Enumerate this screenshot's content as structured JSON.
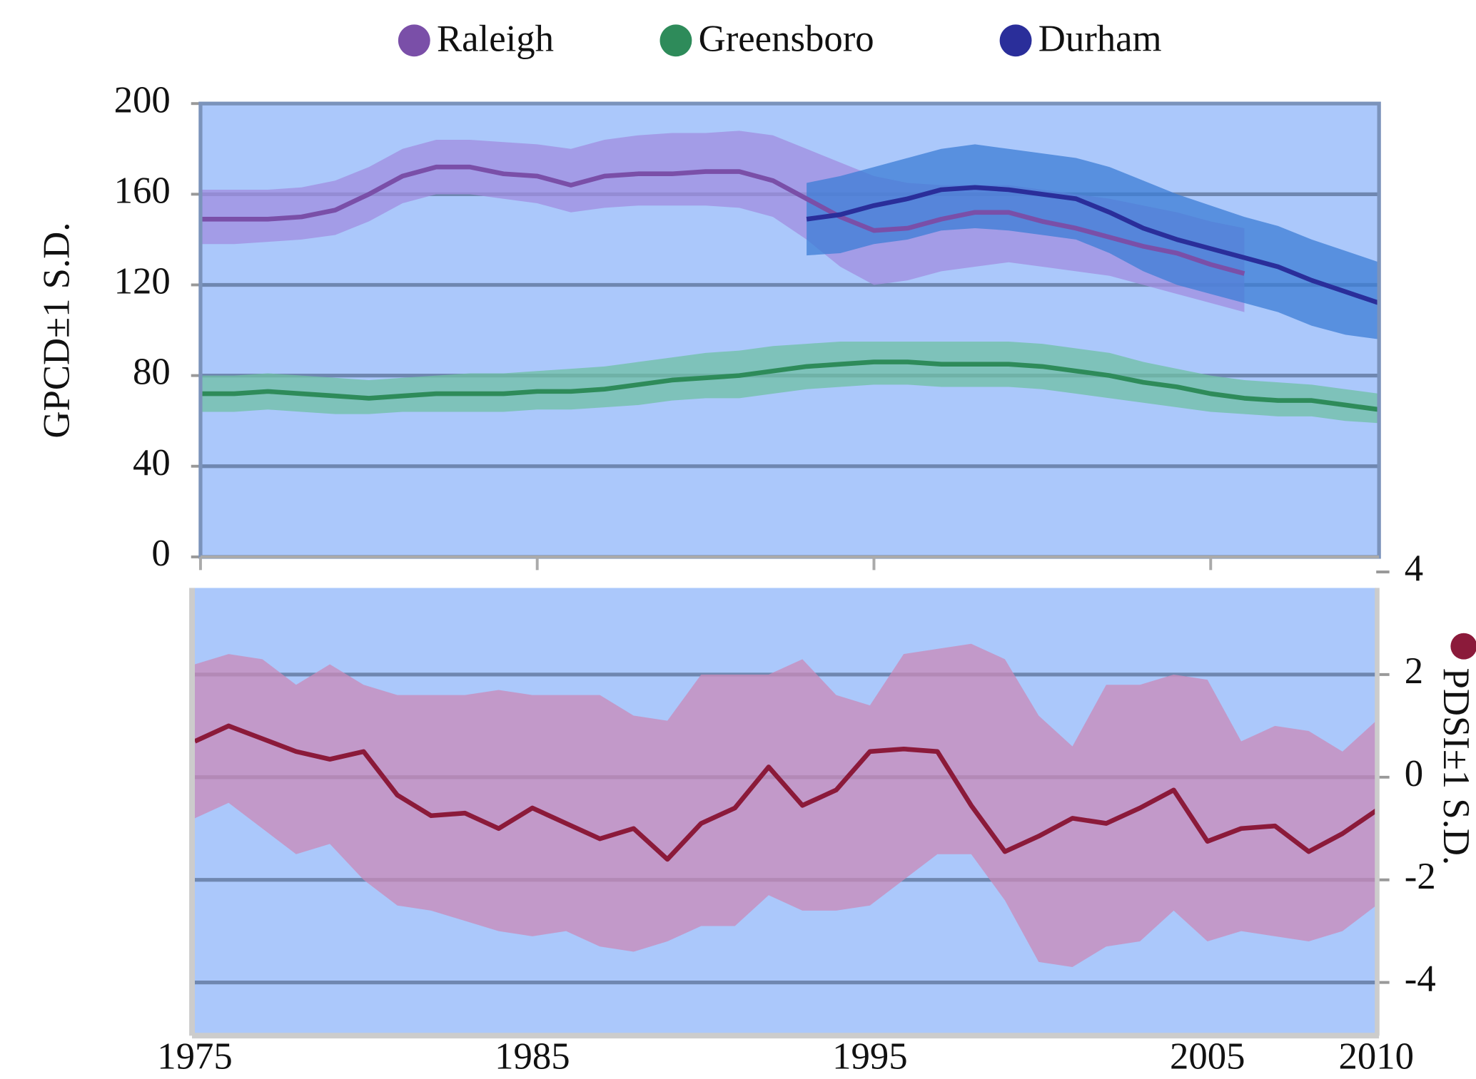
{
  "chart_data": [
    {
      "type": "line",
      "ylabel": "GPCD±1 S.D.",
      "x": [
        1975,
        1976,
        1977,
        1978,
        1979,
        1980,
        1981,
        1982,
        1983,
        1984,
        1985,
        1986,
        1987,
        1988,
        1989,
        1990,
        1991,
        1992,
        1993,
        1994,
        1995,
        1996,
        1997,
        1998,
        1999,
        2000,
        2001,
        2002,
        2003,
        2004,
        2005,
        2006,
        2007,
        2008,
        2009,
        2010
      ],
      "xlim": [
        1975,
        2010
      ],
      "xticks": [
        1975,
        1985,
        1995,
        2005
      ],
      "ylim": [
        0,
        200
      ],
      "yticks": [
        0,
        40,
        80,
        120,
        160,
        200
      ],
      "grid": true,
      "series": [
        {
          "name": "Raleigh",
          "color": "#7a4fa8",
          "band_color": "#a08ee0",
          "values": [
            149,
            149,
            149,
            150,
            153,
            160,
            168,
            172,
            172,
            169,
            168,
            164,
            168,
            169,
            169,
            170,
            170,
            166,
            158,
            150,
            144,
            145,
            149,
            152,
            152,
            148,
            145,
            141,
            137,
            134,
            129,
            125,
            null,
            null,
            null,
            null
          ],
          "upper": [
            162,
            162,
            162,
            163,
            166,
            172,
            180,
            184,
            184,
            183,
            182,
            180,
            184,
            186,
            187,
            187,
            188,
            186,
            180,
            174,
            168,
            165,
            164,
            164,
            164,
            162,
            160,
            158,
            155,
            152,
            148,
            145,
            null,
            null,
            null,
            null
          ],
          "lower": [
            138,
            138,
            139,
            140,
            142,
            148,
            156,
            160,
            160,
            158,
            156,
            152,
            154,
            155,
            155,
            155,
            154,
            150,
            140,
            128,
            120,
            122,
            126,
            128,
            130,
            128,
            126,
            124,
            120,
            116,
            112,
            108,
            null,
            null,
            null,
            null
          ]
        },
        {
          "name": "Greensboro",
          "color": "#2e8b5a",
          "band_color": "#6fc0a4",
          "values": [
            72,
            72,
            73,
            72,
            71,
            70,
            71,
            72,
            72,
            72,
            73,
            73,
            74,
            76,
            78,
            79,
            80,
            82,
            84,
            85,
            86,
            86,
            85,
            85,
            85,
            84,
            82,
            80,
            77,
            75,
            72,
            70,
            69,
            69,
            67,
            65
          ],
          "upper": [
            80,
            80,
            81,
            80,
            79,
            78,
            79,
            80,
            81,
            81,
            82,
            83,
            84,
            86,
            88,
            90,
            91,
            93,
            94,
            95,
            95,
            95,
            95,
            95,
            95,
            94,
            92,
            90,
            86,
            83,
            80,
            78,
            77,
            76,
            74,
            72
          ],
          "lower": [
            64,
            64,
            65,
            64,
            63,
            63,
            64,
            64,
            64,
            64,
            65,
            65,
            66,
            67,
            69,
            70,
            70,
            72,
            74,
            75,
            76,
            76,
            75,
            75,
            75,
            74,
            72,
            70,
            68,
            66,
            64,
            63,
            62,
            62,
            60,
            59
          ]
        },
        {
          "name": "Durham",
          "color": "#2a2e9a",
          "band_color": "#3c7ed6",
          "values": [
            null,
            null,
            null,
            null,
            null,
            null,
            null,
            null,
            null,
            null,
            null,
            null,
            null,
            null,
            null,
            null,
            null,
            null,
            149,
            151,
            155,
            158,
            162,
            163,
            162,
            160,
            158,
            152,
            145,
            140,
            136,
            132,
            128,
            122,
            117,
            112
          ],
          "upper": [
            null,
            null,
            null,
            null,
            null,
            null,
            null,
            null,
            null,
            null,
            null,
            null,
            null,
            null,
            null,
            null,
            null,
            null,
            165,
            168,
            172,
            176,
            180,
            182,
            180,
            178,
            176,
            172,
            166,
            160,
            155,
            150,
            146,
            140,
            135,
            130
          ],
          "lower": [
            null,
            null,
            null,
            null,
            null,
            null,
            null,
            null,
            null,
            null,
            null,
            null,
            null,
            null,
            null,
            null,
            null,
            null,
            133,
            134,
            138,
            140,
            144,
            145,
            144,
            142,
            140,
            134,
            126,
            120,
            116,
            112,
            108,
            102,
            98,
            96
          ]
        }
      ]
    },
    {
      "type": "line",
      "ylabel": "PDSI±1 S.D.",
      "axis_side": "right",
      "x": [
        1975,
        1976,
        1977,
        1978,
        1979,
        1980,
        1981,
        1982,
        1983,
        1984,
        1985,
        1986,
        1987,
        1988,
        1989,
        1990,
        1991,
        1992,
        1993,
        1994,
        1995,
        1996,
        1997,
        1998,
        1999,
        2000,
        2001,
        2002,
        2003,
        2004,
        2005,
        2006,
        2007,
        2008,
        2009,
        2010
      ],
      "xlim": [
        1975,
        2010
      ],
      "xticks": [
        1975,
        1985,
        1995,
        2005,
        2010
      ],
      "ylim": [
        -5,
        4
      ],
      "yticks": [
        -4,
        -2,
        0,
        2,
        4
      ],
      "grid": true,
      "series": [
        {
          "color": "#8b1a3a",
          "band_color": "#c98ab8",
          "values": [
            0.7,
            1.0,
            0.75,
            0.5,
            0.35,
            0.5,
            -0.35,
            -0.75,
            -0.7,
            -1.0,
            -0.6,
            -0.9,
            -1.2,
            -1.0,
            -1.6,
            -0.9,
            -0.6,
            0.2,
            -0.55,
            -0.25,
            0.5,
            0.55,
            0.5,
            -0.55,
            -1.45,
            -1.15,
            -0.8,
            -0.9,
            -0.6,
            -0.25,
            -1.25,
            -1.0,
            -0.95,
            -1.45,
            -1.1,
            -0.65
          ],
          "upper": [
            2.2,
            2.4,
            2.3,
            1.8,
            2.2,
            1.8,
            1.6,
            1.6,
            1.6,
            1.7,
            1.6,
            1.6,
            1.6,
            1.2,
            1.1,
            2.0,
            2.0,
            2.0,
            2.3,
            1.6,
            1.4,
            2.4,
            2.5,
            2.6,
            2.3,
            1.2,
            0.6,
            1.8,
            1.8,
            2.0,
            1.9,
            0.7,
            1.0,
            0.9,
            0.5,
            1.1
          ],
          "lower": [
            -0.8,
            -0.5,
            -1.0,
            -1.5,
            -1.3,
            -2.0,
            -2.5,
            -2.6,
            -2.8,
            -3.0,
            -3.1,
            -3.0,
            -3.3,
            -3.4,
            -3.2,
            -2.9,
            -2.9,
            -2.3,
            -2.6,
            -2.6,
            -2.5,
            -2.0,
            -1.5,
            -1.5,
            -2.4,
            -3.6,
            -3.7,
            -3.3,
            -3.2,
            -2.6,
            -3.2,
            -3.0,
            -3.1,
            -3.2,
            -3.0,
            -2.5
          ]
        }
      ]
    }
  ]
}
